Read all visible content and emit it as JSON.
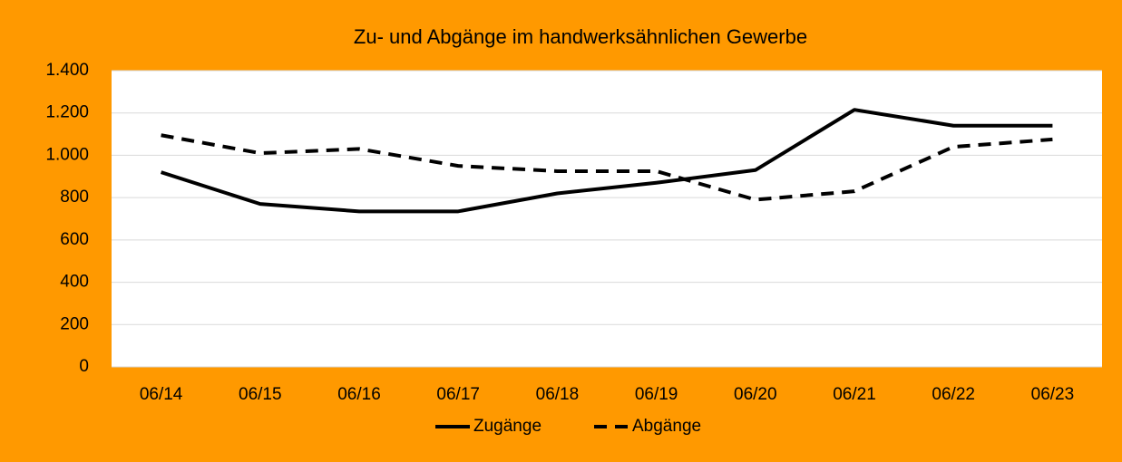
{
  "chart_data": {
    "type": "line",
    "title": "Zu- und Abgänge im handwerksähnlichen Gewerbe",
    "categories": [
      "06/14",
      "06/15",
      "06/16",
      "06/17",
      "06/18",
      "06/19",
      "06/20",
      "06/21",
      "06/22",
      "06/23"
    ],
    "series": [
      {
        "name": "Zugänge",
        "color": "#000000",
        "dash": "solid",
        "values": [
          920,
          770,
          735,
          735,
          820,
          870,
          930,
          1215,
          1140,
          1140
        ]
      },
      {
        "name": "Abgänge",
        "color": "#000000",
        "dash": "dashed",
        "values": [
          1095,
          1010,
          1030,
          950,
          925,
          925,
          790,
          830,
          1040,
          1075
        ]
      }
    ],
    "ylim": [
      0,
      1400
    ],
    "yticks": [
      0,
      200,
      400,
      600,
      800,
      {
        "value": 1000,
        "label": "1.000"
      },
      {
        "value": 1200,
        "label": "1.200"
      },
      {
        "value": 1400,
        "label": "1.400"
      }
    ],
    "grid": true,
    "legend": "bottom"
  }
}
